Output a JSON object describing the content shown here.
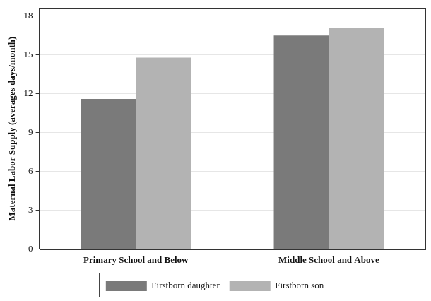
{
  "chart_data": {
    "type": "bar",
    "y_label": "Maternal Labor Supply (averages days/month)",
    "categories": [
      "Primary School and Below",
      "Middle School and Above"
    ],
    "series": [
      {
        "name": "Firstborn daughter",
        "color": "#7a7a7a",
        "values": [
          11.6,
          16.5
        ]
      },
      {
        "name": "Firstborn son",
        "color": "#b3b3b3",
        "values": [
          14.8,
          17.1
        ]
      }
    ],
    "ylim": [
      0,
      18.6
    ],
    "yticks": [
      0,
      3,
      6,
      9,
      12,
      15,
      18
    ],
    "grid": true,
    "legend": "bottom"
  }
}
